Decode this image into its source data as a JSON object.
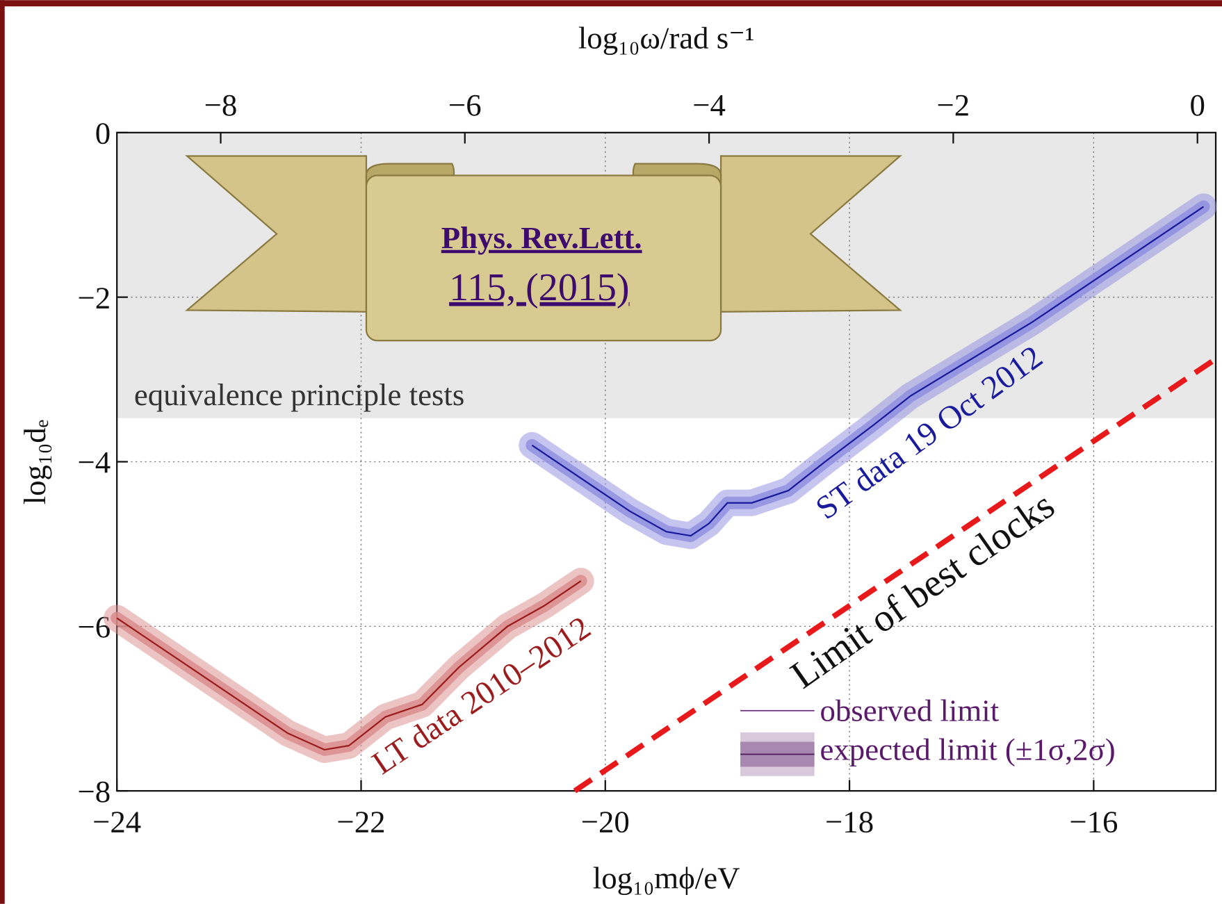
{
  "chart_data": {
    "type": "line",
    "xlabel": "log₁₀mϕ/eV",
    "x2label": "log₁₀ω/rad s⁻¹",
    "ylabel": "log₁₀dₑ",
    "xlim": [
      -24,
      -15
    ],
    "ylim": [
      -8,
      0
    ],
    "x2lim": [
      -8.85,
      0.15
    ],
    "xticks": [
      {
        "value": -24,
        "label": "−24"
      },
      {
        "value": -22,
        "label": "−22"
      },
      {
        "value": -20,
        "label": "−20"
      },
      {
        "value": -18,
        "label": "−18"
      },
      {
        "value": -16,
        "label": "−16"
      }
    ],
    "x2ticks": [
      {
        "value": -8,
        "label": "−8"
      },
      {
        "value": -6,
        "label": "−6"
      },
      {
        "value": -4,
        "label": "−4"
      },
      {
        "value": -2,
        "label": "−2"
      },
      0
    ],
    "yticks": [
      0,
      {
        "value": -2,
        "label": "−2"
      },
      {
        "value": -4,
        "label": "−4"
      },
      {
        "value": -6,
        "label": "−6"
      },
      {
        "value": -8,
        "label": "−8"
      }
    ],
    "grid": true,
    "shaded_region": {
      "label": "equivalence principle tests",
      "y_from": 0,
      "y_to": -3.47
    },
    "series": [
      {
        "name": "LT data 2010–2012",
        "color": "#9b1c1c",
        "band_color": "#d98a8a",
        "x": [
          -24,
          -23.5,
          -23,
          -22.6,
          -22.3,
          -22.1,
          -21.8,
          -21.5,
          -21.2,
          -20.8,
          -20.5,
          -20.2
        ],
        "values": [
          -5.9,
          -6.4,
          -6.9,
          -7.3,
          -7.5,
          -7.45,
          -7.1,
          -6.95,
          -6.5,
          -6.0,
          -5.75,
          -5.45
        ]
      },
      {
        "name": "ST data 19 Oct 2012",
        "color": "#1a1a9c",
        "band_color": "#8c8ce0",
        "x": [
          -20.6,
          -20.2,
          -19.8,
          -19.5,
          -19.3,
          -19.15,
          -19.0,
          -18.8,
          -18.5,
          -18.2,
          -17.8,
          -17.5,
          -17.0,
          -16.5,
          -16.0,
          -15.5,
          -15.1
        ],
        "values": [
          -3.8,
          -4.2,
          -4.6,
          -4.85,
          -4.9,
          -4.75,
          -4.5,
          -4.5,
          -4.35,
          -4.0,
          -3.55,
          -3.2,
          -2.75,
          -2.3,
          -1.8,
          -1.3,
          -0.9
        ]
      },
      {
        "name": "Limit of best clocks",
        "color": "#e8191b",
        "dashed": true,
        "x": [
          -20.25,
          -15
        ],
        "values": [
          -8,
          -2.75
        ]
      }
    ],
    "legend": [
      "observed limit",
      "expected limit (±1σ,2σ)"
    ],
    "banner": [
      "Phys. Rev.Lett.",
      "115, (2015)"
    ]
  }
}
